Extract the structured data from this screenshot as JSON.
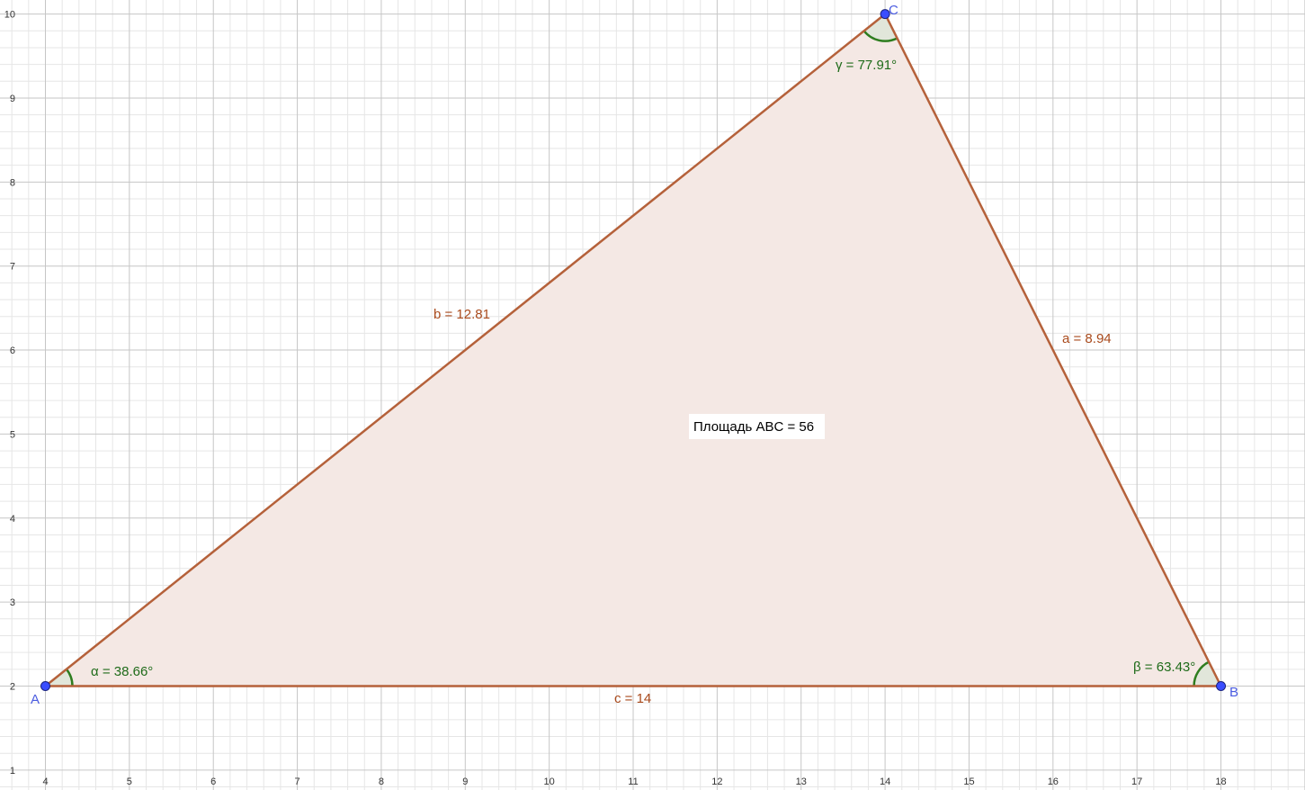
{
  "colors": {
    "background": "#ffffff",
    "grid_minor": "#e6e6e6",
    "grid_major": "#c6c6c6",
    "triangle_fill": "#f4e8e4",
    "triangle_stroke": "#b5613a",
    "segment_label": "#a94a1c",
    "angle_fill": "#dfe6d8",
    "angle_stroke": "#2e7d1f",
    "angle_label": "#1f6b1a",
    "point_fill": "#3a4dff",
    "point_stroke": "#1a237e",
    "point_label": "#4a5be0",
    "area_box": "#ffffff"
  },
  "axes": {
    "x_ticks": [
      "4",
      "5",
      "6",
      "7",
      "8",
      "9",
      "10",
      "11",
      "12",
      "13",
      "14",
      "15",
      "16",
      "17",
      "18"
    ],
    "y_ticks": [
      "1",
      "2",
      "3",
      "4",
      "5",
      "6",
      "7",
      "8",
      "9",
      "10"
    ]
  },
  "points": [
    {
      "id": "A",
      "label": "A",
      "x": 4,
      "y": 2
    },
    {
      "id": "B",
      "label": "B",
      "x": 18,
      "y": 2
    },
    {
      "id": "C",
      "label": "C",
      "x": 14,
      "y": 10
    }
  ],
  "segments": [
    {
      "id": "a",
      "label": "a = 8.94",
      "from": "B",
      "to": "C"
    },
    {
      "id": "b",
      "label": "b = 12.81",
      "from": "A",
      "to": "C"
    },
    {
      "id": "c",
      "label": "c = 14",
      "from": "A",
      "to": "B"
    }
  ],
  "angles": [
    {
      "id": "alpha",
      "label": "α = 38.66°",
      "vertex": "A"
    },
    {
      "id": "beta",
      "label": "β = 63.43°",
      "vertex": "B"
    },
    {
      "id": "gamma",
      "label": "γ = 77.91°",
      "vertex": "C"
    }
  ],
  "area_label": "Площадь  ABC = 56"
}
